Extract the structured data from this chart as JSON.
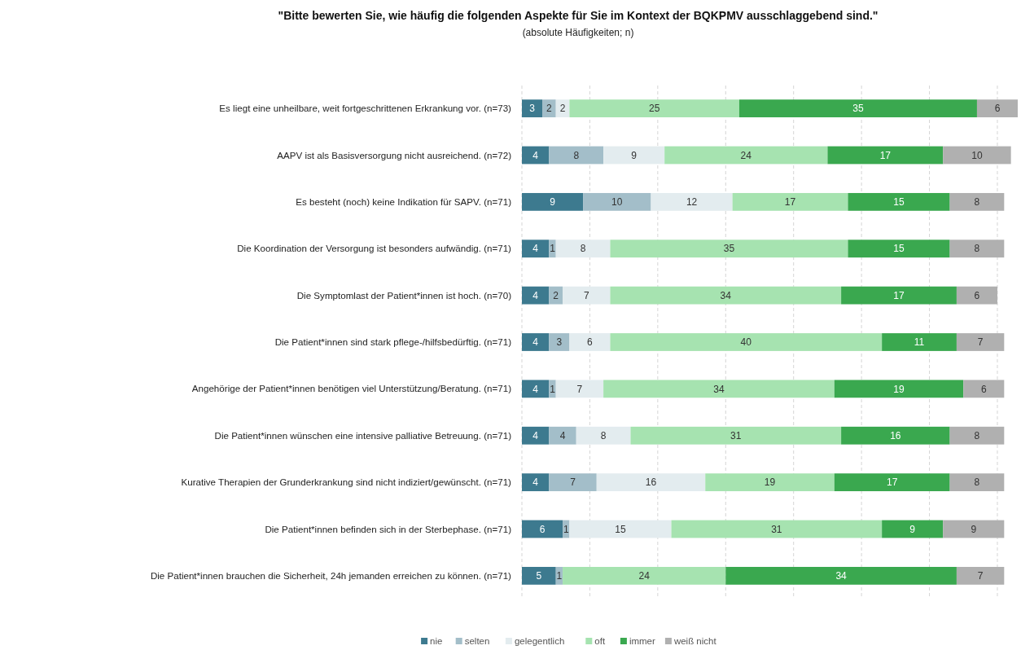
{
  "chart_data": {
    "type": "bar",
    "orientation": "horizontal",
    "stacked": true,
    "grid": "x",
    "legend": "bottom",
    "data_labels": true,
    "title": "\"Bitte bewerten Sie, wie häufig die folgenden Aspekte für Sie im Kontext der BQKPMV ausschlaggebend sind.\"",
    "subtitle": "(absolute Häufigkeiten; n)",
    "categories": [
      "Es liegt eine unheilbare, weit fortgeschrittenen Erkrankung vor. (n=73)",
      "AAPV ist als Basisversorgung nicht ausreichend. (n=72)",
      "Es besteht (noch) keine Indikation für SAPV. (n=71)",
      "Die Koordination der Versorgung ist besonders aufwändig. (n=71)",
      "Die Symptomlast der Patient*innen ist hoch. (n=70)",
      "Die Patient*innen sind stark pflege-/hilfsbedürftig. (n=71)",
      "Angehörige der Patient*innen benötigen viel Unterstützung/Beratung. (n=71)",
      "Die Patient*innen wünschen eine intensive palliative Betreuung. (n=71)",
      "Kurative Therapien der Grunderkrankung sind nicht indiziert/gewünscht. (n=71)",
      "Die Patient*innen befinden sich in der Sterbephase. (n=71)",
      "Die Patient*innen brauchen die Sicherheit, 24h jemanden erreichen zu können. (n=71)"
    ],
    "series": [
      {
        "name": "nie",
        "color": "#3d7a8f",
        "values": [
          3,
          4,
          9,
          4,
          4,
          4,
          4,
          4,
          4,
          6,
          5
        ]
      },
      {
        "name": "selten",
        "color": "#a3bec9",
        "values": [
          2,
          8,
          10,
          1,
          2,
          3,
          1,
          4,
          7,
          1,
          1
        ]
      },
      {
        "name": "gelegentlich",
        "color": "#e3ecef",
        "values": [
          2,
          9,
          12,
          8,
          7,
          6,
          7,
          8,
          16,
          15,
          null
        ]
      },
      {
        "name": "oft",
        "color": "#a6e3b0",
        "values": [
          25,
          24,
          17,
          35,
          34,
          40,
          34,
          31,
          19,
          31,
          24
        ]
      },
      {
        "name": "immer",
        "color": "#3aa84f",
        "values": [
          35,
          17,
          15,
          15,
          17,
          11,
          19,
          16,
          17,
          9,
          34
        ]
      },
      {
        "name": "weiß nicht",
        "color": "#b0b0b0",
        "values": [
          6,
          10,
          8,
          8,
          6,
          7,
          6,
          8,
          8,
          9,
          7
        ]
      }
    ]
  }
}
